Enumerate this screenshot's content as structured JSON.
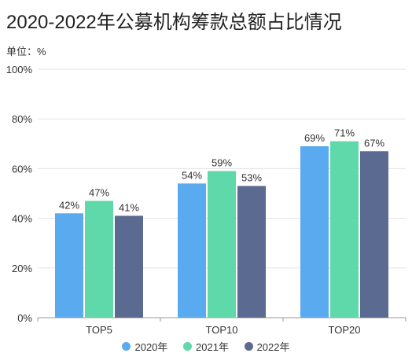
{
  "title": "2020-2022年公募机构筹款总额占比情况",
  "unit_label": "单位：%",
  "chart_data": {
    "type": "bar",
    "categories": [
      "TOP5",
      "TOP10",
      "TOP20"
    ],
    "series": [
      {
        "name": "2020年",
        "values": [
          42,
          54,
          69
        ],
        "color": "#5aaaf0"
      },
      {
        "name": "2021年",
        "values": [
          47,
          59,
          71
        ],
        "color": "#5fd8aa"
      },
      {
        "name": "2022年",
        "values": [
          41,
          53,
          67
        ],
        "color": "#5a6a90"
      }
    ],
    "value_labels": [
      [
        "42%",
        "54%",
        "69%"
      ],
      [
        "47%",
        "59%",
        "71%"
      ],
      [
        "41%",
        "53%",
        "67%"
      ]
    ],
    "ylim": [
      0,
      100
    ],
    "yticks": [
      0,
      20,
      40,
      60,
      80,
      100
    ],
    "ytick_labels": [
      "0%",
      "20%",
      "40%",
      "60%",
      "80%",
      "100%"
    ],
    "grid": true,
    "legend_position": "bottom"
  }
}
